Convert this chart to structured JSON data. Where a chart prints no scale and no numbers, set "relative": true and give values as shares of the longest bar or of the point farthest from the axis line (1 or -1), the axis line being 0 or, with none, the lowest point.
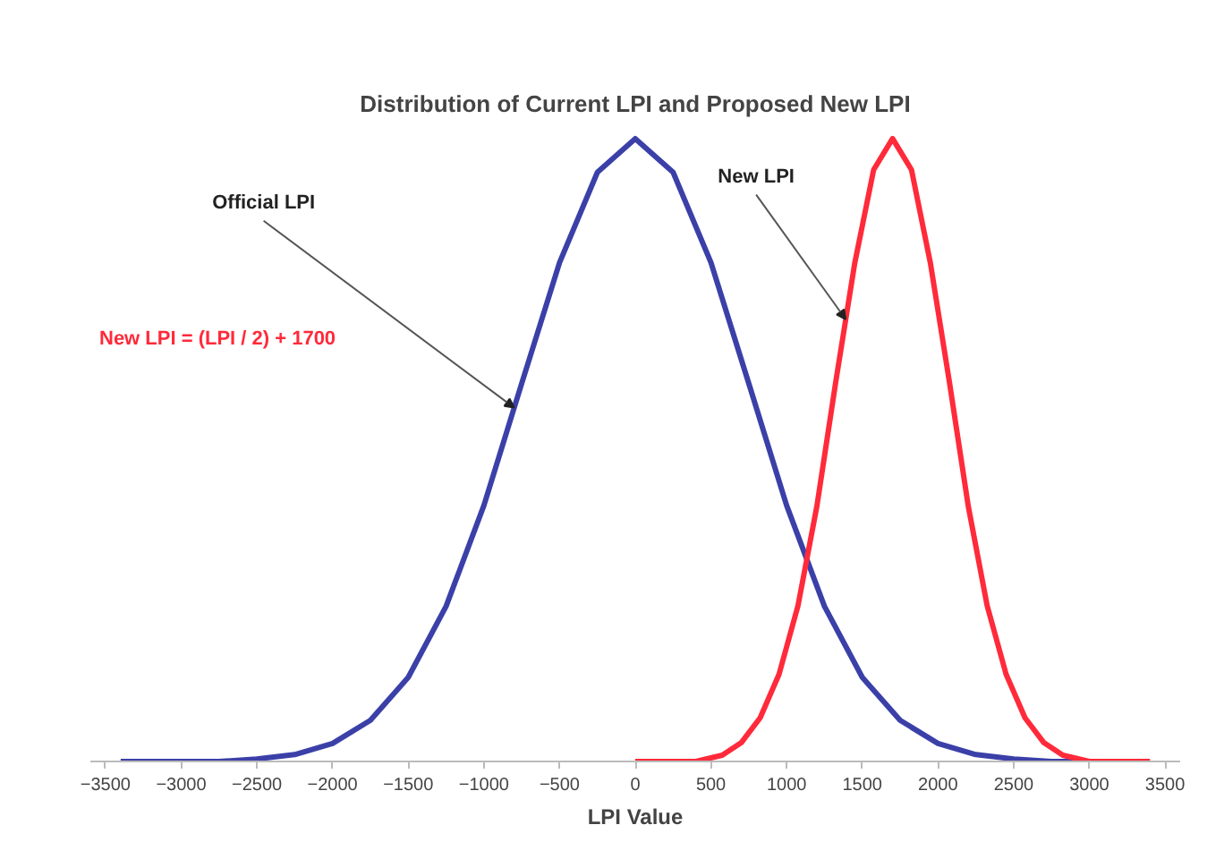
{
  "chart_data": {
    "type": "line",
    "title": "Distribution of Current LPI and Proposed New LPI",
    "xlabel": "LPI Value",
    "relative": true,
    "grid": false,
    "tick_labels": "x",
    "marker": "none",
    "line_style": "solid",
    "xlim": [
      -3600,
      3600
    ],
    "xticks": [
      -3500,
      -3000,
      -2500,
      -2000,
      -1500,
      -1000,
      -500,
      0,
      500,
      1000,
      1500,
      2000,
      2500,
      3000,
      3500
    ],
    "series": [
      {
        "color": "#3b40a8",
        "x": [
          -3400,
          -3000,
          -2750,
          -2500,
          -2250,
          -2000,
          -1750,
          -1500,
          -1250,
          -1000,
          -750,
          -500,
          -250,
          0,
          250,
          500,
          750,
          1000,
          1250,
          1500,
          1750,
          2000,
          2250,
          2500,
          2750,
          3000,
          3400
        ],
        "values": [
          0,
          0,
          0,
          0.004,
          0.011,
          0.029,
          0.066,
          0.135,
          0.249,
          0.411,
          0.607,
          0.801,
          0.946,
          1,
          0.946,
          0.801,
          0.607,
          0.411,
          0.249,
          0.135,
          0.066,
          0.029,
          0.011,
          0.004,
          0,
          0,
          0
        ]
      },
      {
        "color": "#ff2a3a",
        "x": [
          0,
          400,
          575,
          700,
          825,
          950,
          1075,
          1200,
          1325,
          1450,
          1575,
          1700,
          1825,
          1950,
          2075,
          2200,
          2325,
          2450,
          2575,
          2700,
          2825,
          3000,
          3400
        ],
        "values": [
          0,
          0,
          0.01,
          0.03,
          0.07,
          0.14,
          0.25,
          0.41,
          0.61,
          0.8,
          0.95,
          1,
          0.95,
          0.8,
          0.61,
          0.41,
          0.25,
          0.14,
          0.07,
          0.03,
          0.01,
          0,
          0
        ]
      }
    ],
    "annotations": [
      {
        "text": "Official LPI",
        "x": -800,
        "y": 0.568
      },
      {
        "text": "New LPI",
        "x": 1390,
        "y": 0.71
      },
      "New LPI = (LPI / 2) + 1700"
    ]
  }
}
